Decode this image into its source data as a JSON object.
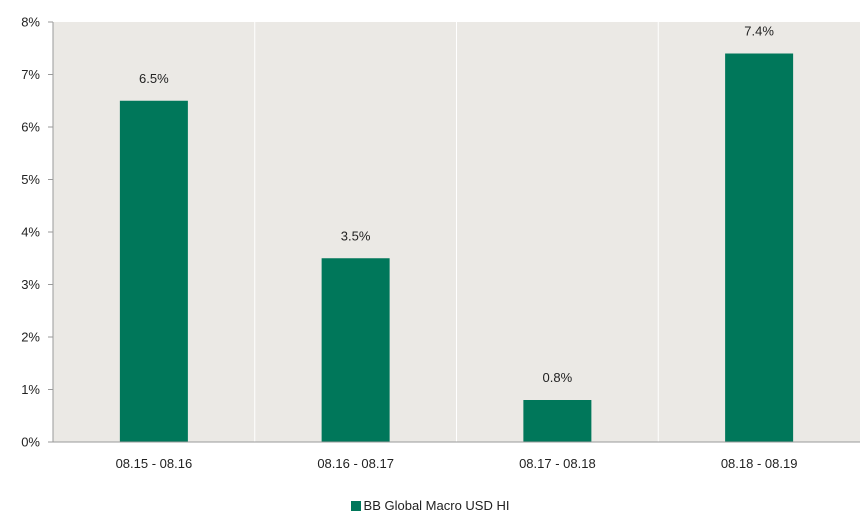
{
  "chart_data": {
    "type": "bar",
    "categories": [
      "08.15 - 08.16",
      "08.16 - 08.17",
      "08.17 - 08.18",
      "08.18 - 08.19"
    ],
    "series": [
      {
        "name": "BB Global Macro USD HI",
        "values": [
          6.5,
          3.5,
          0.8,
          7.4
        ],
        "labels": [
          "6.5%",
          "3.5%",
          "0.8%",
          "7.4%"
        ]
      }
    ],
    "ylim": [
      0,
      8
    ],
    "yticks": [
      "0%",
      "1%",
      "2%",
      "3%",
      "4%",
      "5%",
      "6%",
      "7%",
      "8%"
    ],
    "legend_position": "bottom",
    "grid": "vertical separators",
    "colors": {
      "bar": "#00775a",
      "plot_background": "#ebe9e5",
      "separator": "#ffffff",
      "axis": "#9a9a9a"
    }
  }
}
